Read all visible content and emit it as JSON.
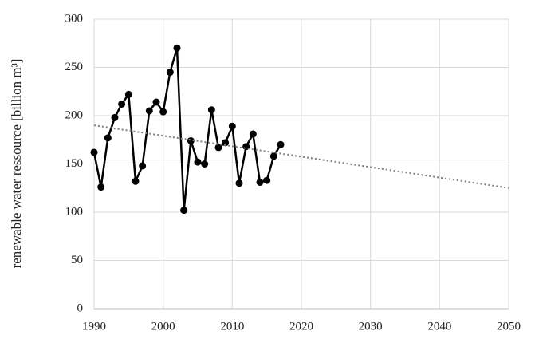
{
  "chart_data": {
    "type": "line",
    "y_label": "renewable water ressource  [billion m³]",
    "xlim": [
      1990,
      2050
    ],
    "xticks": [
      1990,
      2000,
      2010,
      2020,
      2030,
      2040,
      2050
    ],
    "ylim": [
      0,
      300
    ],
    "yticks": [
      0,
      50,
      100,
      150,
      200,
      250,
      300
    ],
    "grid": true,
    "series": [
      {
        "color": "#000000",
        "line_style": "solid",
        "markers": true,
        "x": [
          1990,
          1991,
          1992,
          1993,
          1994,
          1995,
          1996,
          1997,
          1998,
          1999,
          2000,
          2001,
          2002,
          2003,
          2004,
          2005,
          2006,
          2007,
          2008,
          2009,
          2010,
          2011,
          2012,
          2013,
          2014,
          2015,
          2016,
          2017
        ],
        "values": [
          162,
          126,
          177,
          198,
          212,
          222,
          132,
          148,
          205,
          214,
          204,
          245,
          270,
          102,
          174,
          152,
          150,
          206,
          167,
          172,
          189,
          130,
          168,
          181,
          131,
          133,
          158,
          170
        ]
      },
      {
        "color": "#808080",
        "line_style": "dotted",
        "markers": false,
        "x": [
          1990,
          2050
        ],
        "values": [
          190,
          125
        ]
      }
    ]
  }
}
